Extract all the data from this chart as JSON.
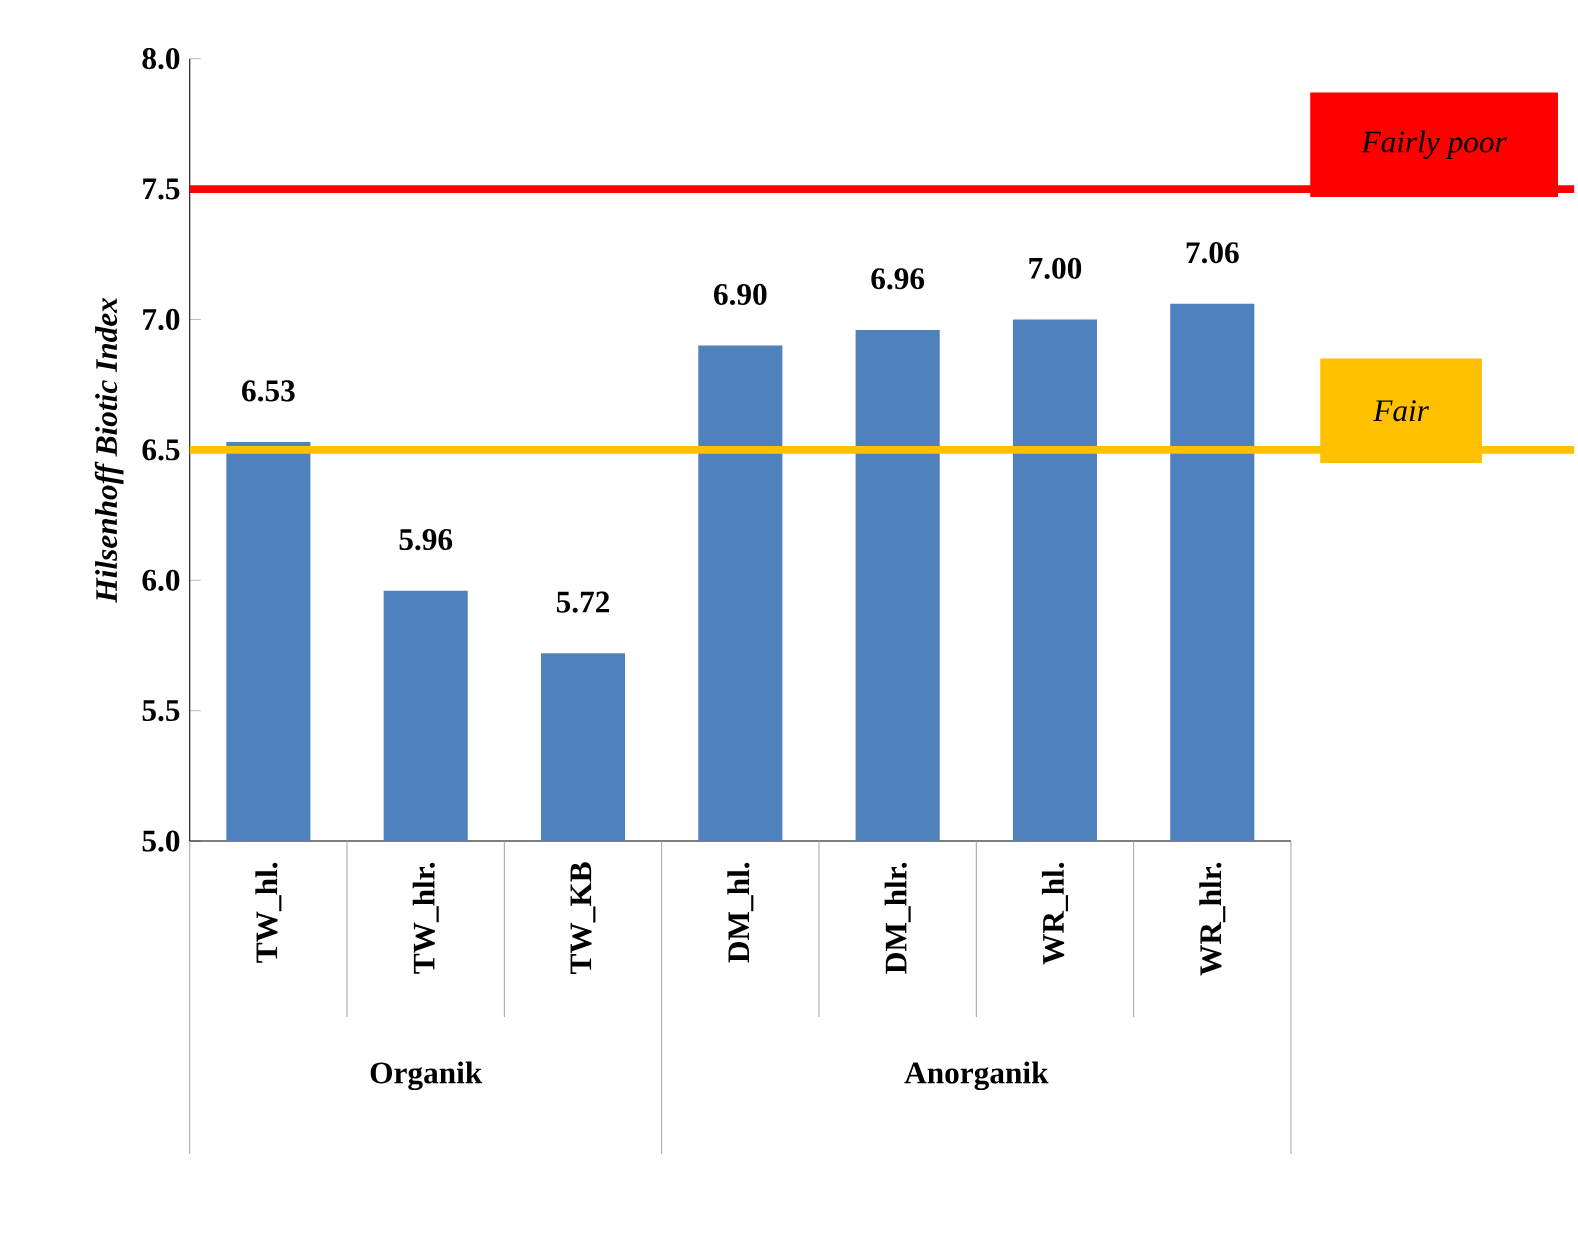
{
  "chart_data": {
    "type": "bar",
    "ylabel": "Hilsenhoff Biotic Index",
    "categories": [
      "TW_hl.",
      "TW_hlr.",
      "TW_KB",
      "DM_hl.",
      "DM_hlr.",
      "WR_hl.",
      "WR_hlr."
    ],
    "values": [
      6.53,
      5.96,
      5.72,
      6.9,
      6.96,
      7.0,
      7.06
    ],
    "color": "#4f81bd",
    "value_labels": [
      "6.53",
      "5.96",
      "5.72",
      "6.90",
      "6.96",
      "7.00",
      "7.06"
    ],
    "ylim": [
      5,
      8
    ],
    "yticks": [
      {
        "value": 5,
        "label": "5.0"
      },
      {
        "value": 5.5,
        "label": "5.5"
      },
      {
        "value": 6,
        "label": "6.0"
      },
      {
        "value": 6.5,
        "label": "6.5"
      },
      {
        "value": 7,
        "label": "7.0"
      },
      {
        "value": 7.5,
        "label": "7.5"
      },
      {
        "value": 8,
        "label": "8.0"
      }
    ],
    "ref_lines": [
      {
        "axis": "y",
        "value": 7.5,
        "label": "Fairly poor",
        "color": "#ff0000"
      },
      {
        "axis": "y",
        "value": 6.5,
        "label": "Fair",
        "color": "#ffc000"
      }
    ],
    "annotations": [
      "Organik",
      "Anorganik"
    ],
    "grid": false
  }
}
